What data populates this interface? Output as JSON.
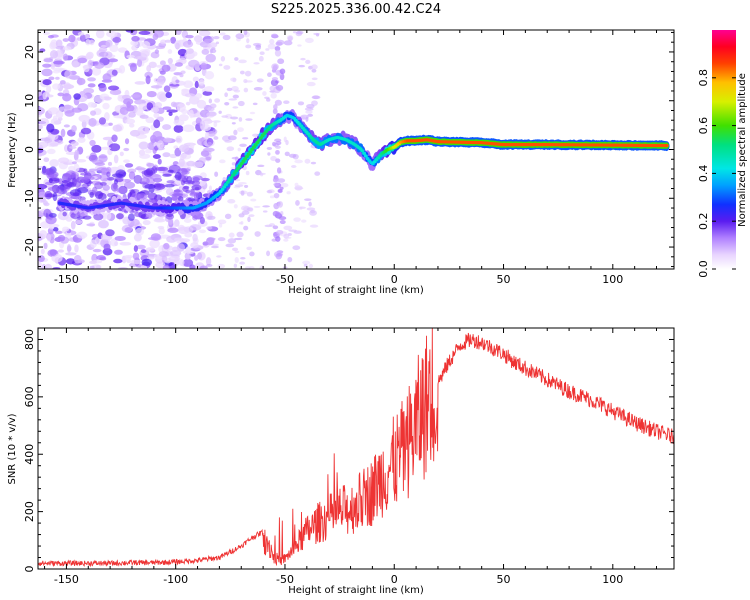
{
  "title": "S225.2025.336.00.42.C24",
  "chart_data": [
    {
      "type": "heatmap",
      "name": "spectrogram",
      "xlabel": "Height of straight line (km)",
      "ylabel": "Frequency (Hz)",
      "xlim": [
        -163,
        128
      ],
      "ylim": [
        -24.5,
        24.5
      ],
      "xticks": [
        -150,
        -100,
        -50,
        0,
        50,
        100
      ],
      "yticks": [
        -20,
        -10,
        0,
        10,
        20
      ],
      "colorbar": {
        "label": "Normalized spectral amplitude",
        "range": [
          0,
          1
        ],
        "ticks": [
          "0.0",
          "0.2",
          "0.4",
          "0.6",
          "0.8"
        ]
      },
      "ridge": {
        "x": [
          -153,
          -140,
          -125,
          -110,
          -100,
          -92,
          -86,
          -80,
          -75,
          -70,
          -65,
          -60,
          -56,
          -52,
          -49,
          -46,
          -43,
          -40,
          -37,
          -34,
          -30,
          -26,
          -22,
          -18,
          -15,
          -12,
          -10,
          -8,
          -6,
          -3,
          0,
          3,
          6,
          10,
          15,
          20,
          30,
          40,
          50,
          70,
          100,
          125
        ],
        "y": [
          -11,
          -12,
          -11,
          -12,
          -12,
          -12,
          -11,
          -9,
          -6,
          -3,
          0,
          3,
          5,
          6,
          7,
          6.5,
          5,
          3.5,
          2,
          1,
          2,
          2.5,
          2,
          1,
          0,
          -2,
          -3,
          -2,
          -1,
          0,
          0.5,
          1.5,
          1.8,
          1.8,
          2,
          1.6,
          1.5,
          1.4,
          1.0,
          1.0,
          0.9,
          0.8
        ],
        "amplitude": [
          0.25,
          0.25,
          0.25,
          0.25,
          0.3,
          0.35,
          0.35,
          0.4,
          0.5,
          0.55,
          0.55,
          0.55,
          0.5,
          0.45,
          0.4,
          0.4,
          0.45,
          0.45,
          0.5,
          0.5,
          0.45,
          0.45,
          0.45,
          0.45,
          0.45,
          0.4,
          0.4,
          0.45,
          0.5,
          0.6,
          0.7,
          0.8,
          0.85,
          0.85,
          0.85,
          0.85,
          0.85,
          0.85,
          0.85,
          0.85,
          0.85,
          0.85
        ]
      }
    },
    {
      "type": "line",
      "name": "snr",
      "xlabel": "Height of straight line (km)",
      "ylabel": "SNR (10 * v/v)",
      "xlim": [
        -163,
        128
      ],
      "ylim": [
        0,
        840
      ],
      "xticks": [
        -150,
        -100,
        -50,
        0,
        50,
        100
      ],
      "yticks": [
        0,
        200,
        400,
        600,
        800
      ],
      "series": [
        {
          "name": "SNR",
          "color": "#ee3333",
          "x": [
            -163,
            -150,
            -140,
            -130,
            -120,
            -110,
            -100,
            -90,
            -80,
            -75,
            -70,
            -65,
            -60,
            -57,
            -55,
            -52,
            -50,
            -45,
            -40,
            -35,
            -30,
            -25,
            -20,
            -15,
            -10,
            -5,
            0,
            5,
            10,
            15,
            20,
            25,
            30,
            35,
            40,
            45,
            50,
            55,
            60,
            70,
            80,
            90,
            100,
            110,
            120,
            128
          ],
          "y": [
            20,
            20,
            20,
            20,
            22,
            22,
            25,
            30,
            40,
            60,
            80,
            110,
            130,
            80,
            40,
            30,
            35,
            80,
            130,
            160,
            180,
            200,
            210,
            240,
            270,
            330,
            370,
            420,
            500,
            580,
            650,
            720,
            780,
            800,
            790,
            770,
            750,
            720,
            700,
            660,
            620,
            590,
            550,
            510,
            480,
            460
          ]
        }
      ]
    }
  ]
}
